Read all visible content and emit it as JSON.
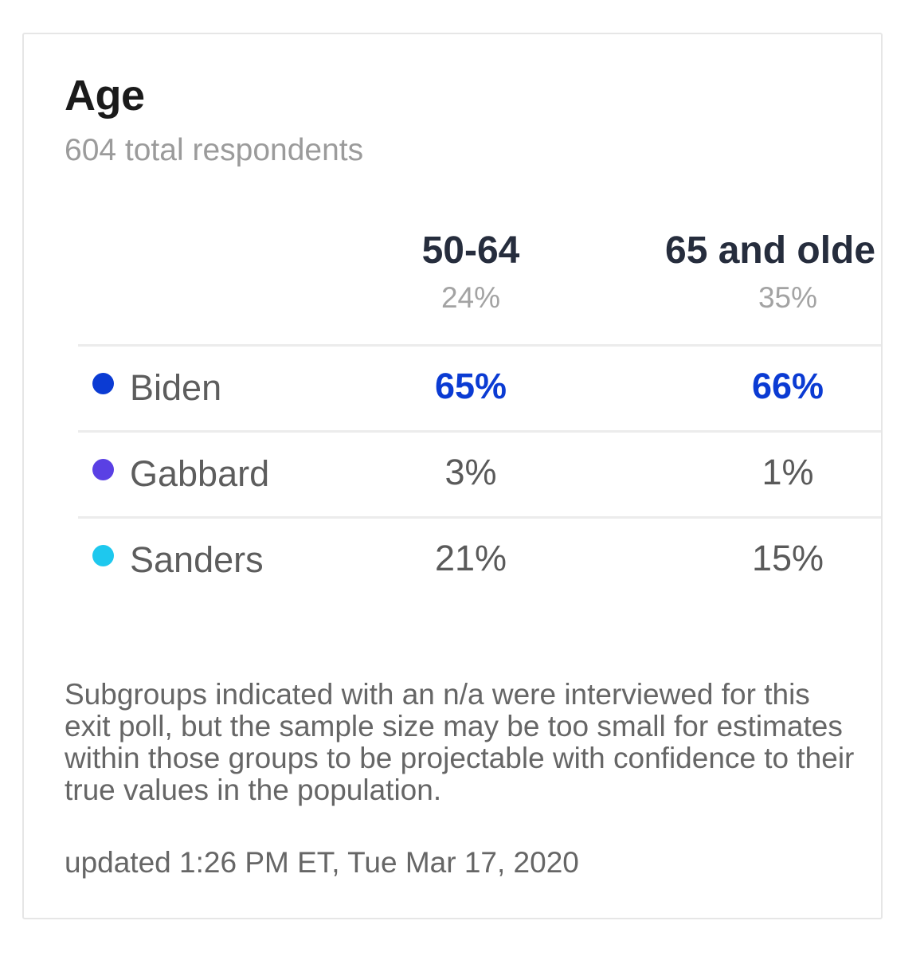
{
  "card": {
    "title": "Age",
    "subtitle": "604 total respondents"
  },
  "columns": [
    {
      "name": "50-64",
      "share": "24%"
    },
    {
      "name": "65 and olde",
      "share": "35%"
    }
  ],
  "rows": [
    {
      "candidate": "Biden",
      "dot_color": "#0b3bd3",
      "values": [
        "65%",
        "66%"
      ],
      "leading": true
    },
    {
      "candidate": "Gabbard",
      "dot_color": "#5a40e4",
      "values": [
        "3%",
        "1%"
      ],
      "leading": false
    },
    {
      "candidate": "Sanders",
      "dot_color": "#1ec8ee",
      "values": [
        "21%",
        "15%"
      ],
      "leading": false
    }
  ],
  "footnote": "Subgroups indicated with an n/a were interviewed for this exit poll, but the sample size may be too small for estimates within those groups to be projectable with confidence to their true values in the population.",
  "updated": "updated 1:26 PM ET, Tue Mar 17, 2020",
  "colors": {
    "lead_value": "#0b3bd3",
    "text_dark": "#262d3d",
    "text_muted": "#9b9b9b",
    "divider": "#ececec"
  }
}
